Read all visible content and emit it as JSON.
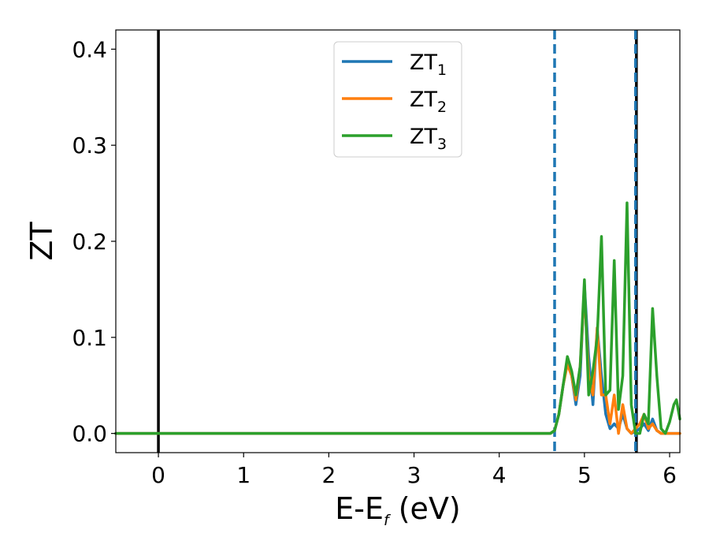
{
  "chart_data": {
    "type": "line",
    "xlabel_main": "E-E",
    "xlabel_sub": "f",
    "xlabel_unit": " (eV)",
    "ylabel": "ZT",
    "xlim": [
      -0.5,
      6.12
    ],
    "ylim": [
      -0.02,
      0.42
    ],
    "x_ticks": [
      0,
      1,
      2,
      3,
      4,
      5,
      6
    ],
    "y_ticks": [
      0.0,
      0.1,
      0.2,
      0.3,
      0.4
    ],
    "x_tick_labels": [
      "0",
      "1",
      "2",
      "3",
      "4",
      "5",
      "6"
    ],
    "y_tick_labels": [
      "0.0",
      "0.1",
      "0.2",
      "0.3",
      "0.4"
    ],
    "legend": "top-center",
    "grid": false,
    "vertical_lines": [
      {
        "x": 0.0,
        "color": "#000000",
        "style": "solid"
      },
      {
        "x": 5.61,
        "color": "#000000",
        "style": "solid"
      },
      {
        "x": 4.65,
        "color": "#1f77b4",
        "style": "dashed"
      },
      {
        "x": 5.6,
        "color": "#1f77b4",
        "style": "dashed"
      }
    ],
    "series": [
      {
        "name_main": "ZT",
        "name_sub": "1",
        "color": "#1f77b4",
        "x": [
          -0.5,
          4.6,
          4.65,
          4.7,
          4.75,
          4.8,
          4.85,
          4.9,
          4.95,
          5.0,
          5.05,
          5.1,
          5.15,
          5.2,
          5.25,
          5.3,
          5.35,
          5.4,
          5.45,
          5.5,
          5.55,
          5.6,
          5.65,
          5.7,
          5.75,
          5.8,
          5.85,
          5.9,
          6.12
        ],
        "y": [
          0.0,
          0.0,
          0.003,
          0.02,
          0.05,
          0.075,
          0.06,
          0.03,
          0.06,
          0.155,
          0.08,
          0.03,
          0.11,
          0.06,
          0.02,
          0.005,
          0.01,
          0.005,
          0.02,
          0.005,
          0.0,
          0.002,
          0.005,
          0.01,
          0.003,
          0.015,
          0.003,
          0.0,
          0.0
        ]
      },
      {
        "name_main": "ZT",
        "name_sub": "2",
        "color": "#ff7f0e",
        "x": [
          -0.5,
          4.6,
          4.65,
          4.7,
          4.75,
          4.8,
          4.85,
          4.9,
          4.95,
          5.0,
          5.05,
          5.1,
          5.15,
          5.2,
          5.25,
          5.3,
          5.35,
          5.4,
          5.45,
          5.5,
          5.55,
          5.6,
          5.65,
          5.7,
          5.75,
          5.8,
          5.85,
          5.9,
          6.12
        ],
        "y": [
          0.0,
          0.0,
          0.003,
          0.02,
          0.05,
          0.072,
          0.06,
          0.035,
          0.07,
          0.15,
          0.06,
          0.04,
          0.11,
          0.04,
          0.04,
          0.01,
          0.04,
          0.0,
          0.03,
          0.005,
          0.0,
          0.005,
          0.01,
          0.02,
          0.005,
          0.01,
          0.003,
          0.0,
          0.0
        ]
      },
      {
        "name_main": "ZT",
        "name_sub": "3",
        "color": "#2ca02c",
        "x": [
          -0.5,
          4.6,
          4.65,
          4.7,
          4.75,
          4.8,
          4.85,
          4.9,
          4.95,
          5.0,
          5.05,
          5.1,
          5.15,
          5.2,
          5.25,
          5.3,
          5.35,
          5.4,
          5.45,
          5.5,
          5.55,
          5.6,
          5.65,
          5.7,
          5.75,
          5.8,
          5.85,
          5.9,
          5.95,
          6.0,
          6.05,
          6.08,
          6.12
        ],
        "y": [
          0.0,
          0.0,
          0.003,
          0.02,
          0.05,
          0.08,
          0.065,
          0.04,
          0.07,
          0.16,
          0.04,
          0.065,
          0.1,
          0.205,
          0.04,
          0.045,
          0.18,
          0.025,
          0.06,
          0.24,
          0.03,
          0.0,
          0.0,
          0.02,
          0.01,
          0.13,
          0.06,
          0.005,
          0.0,
          0.012,
          0.03,
          0.035,
          0.015
        ]
      }
    ]
  }
}
